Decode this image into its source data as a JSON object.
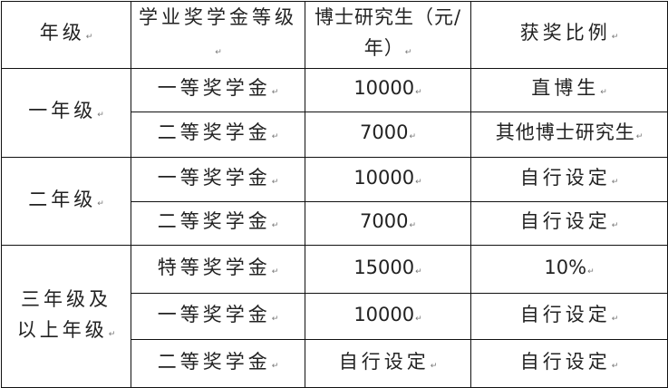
{
  "header": [
    "年级",
    "学业奖学金等级",
    "博士研究生（元/年）",
    "获奖比例"
  ],
  "groups": [
    {
      "grade": "一年级",
      "rows": [
        {
          "level": "一等奖学金",
          "amount": "10000",
          "ratio": "直博生"
        },
        {
          "level": "二等奖学金",
          "amount": "7000",
          "ratio": "其他博士研究生"
        }
      ]
    },
    {
      "grade": "二年级",
      "rows": [
        {
          "level": "一等奖学金",
          "amount": "10000",
          "ratio": "自行设定"
        },
        {
          "level": "二等奖学金",
          "amount": "7000",
          "ratio": "自行设定"
        }
      ]
    },
    {
      "grade": "三年级及以上年级",
      "rows": [
        {
          "level": "特等奖学金",
          "amount": "15000",
          "ratio": "10%"
        },
        {
          "level": "一等奖学金",
          "amount": "10000",
          "ratio": "自行设定"
        },
        {
          "level": "二等奖学金",
          "amount": "自行设定",
          "ratio": "自行设定"
        }
      ]
    }
  ]
}
